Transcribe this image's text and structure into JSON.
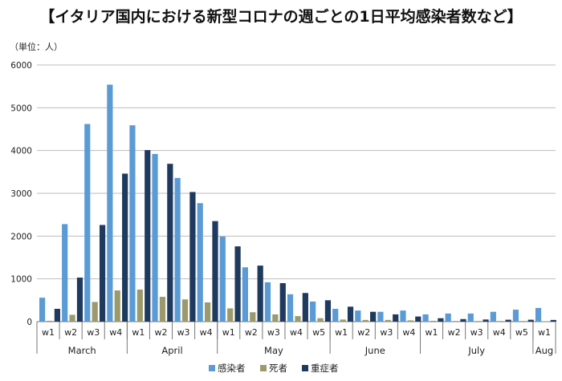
{
  "chart_data": {
    "type": "bar",
    "title": "【イタリア国内における新型コロナの週ごとの1日平均感染者数など】",
    "unit_label": "（単位：人）",
    "ylim": [
      0,
      6000
    ],
    "yticks": [
      0,
      1000,
      2000,
      3000,
      4000,
      5000,
      6000
    ],
    "grid": true,
    "legend_position": "bottom",
    "categories": [
      "w1",
      "w2",
      "w3",
      "w4",
      "w1",
      "w2",
      "w3",
      "w4",
      "w1",
      "w2",
      "w3",
      "w4",
      "w5",
      "w1",
      "w2",
      "w3",
      "w4",
      "w1",
      "w2",
      "w3",
      "w4",
      "w5",
      "w1"
    ],
    "month_groups": [
      {
        "label": "March",
        "count": 4
      },
      {
        "label": "April",
        "count": 4
      },
      {
        "label": "May",
        "count": 5
      },
      {
        "label": "June",
        "count": 4
      },
      {
        "label": "July",
        "count": 5
      },
      {
        "label": "Aug",
        "count": 1
      }
    ],
    "series": [
      {
        "name": "感染者",
        "color": "#5b9bd5",
        "values": [
          560,
          2280,
          4620,
          5540,
          4590,
          3920,
          3360,
          2770,
          1990,
          1270,
          920,
          640,
          470,
          300,
          260,
          230,
          260,
          170,
          190,
          190,
          230,
          280,
          320
        ]
      },
      {
        "name": "死者",
        "color": "#9c9a6c",
        "values": [
          20,
          160,
          460,
          730,
          750,
          580,
          520,
          450,
          310,
          220,
          170,
          130,
          80,
          50,
          40,
          40,
          30,
          20,
          15,
          15,
          15,
          15,
          10
        ]
      },
      {
        "name": "重症者",
        "color": "#1f3a5f",
        "values": [
          300,
          1030,
          2260,
          3460,
          4010,
          3690,
          3030,
          2350,
          1760,
          1310,
          900,
          670,
          500,
          350,
          230,
          170,
          120,
          80,
          60,
          50,
          45,
          45,
          40
        ]
      }
    ]
  }
}
